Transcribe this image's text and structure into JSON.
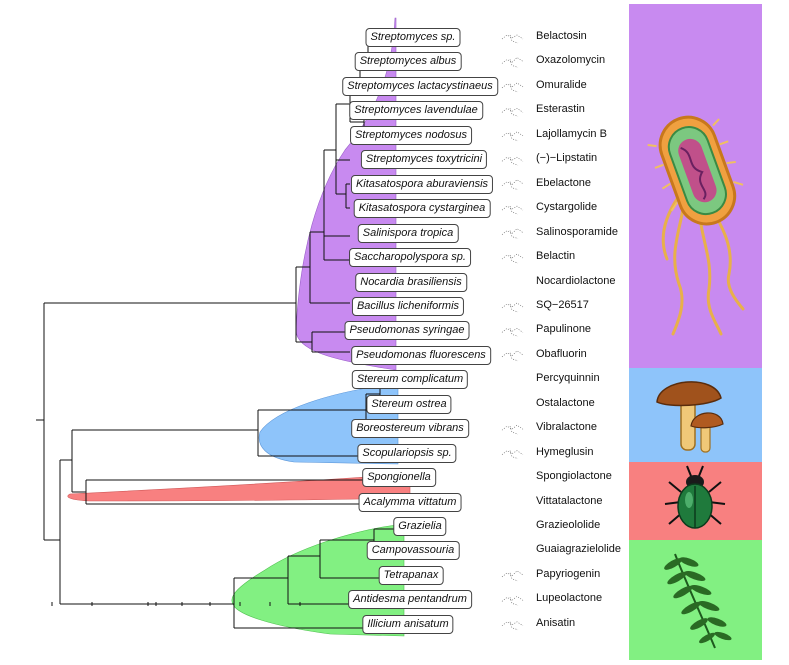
{
  "groups": [
    {
      "key": "bacteria",
      "color": "#c88af0",
      "icon": "bacterium-icon"
    },
    {
      "key": "fungi",
      "color": "#8ec4fa",
      "icon": "mushroom-icon"
    },
    {
      "key": "insects",
      "color": "#f88080",
      "icon": "beetle-icon"
    },
    {
      "key": "plants",
      "color": "#82f082",
      "icon": "fern-leaf-icon"
    }
  ],
  "taxa": [
    {
      "organism": "Streptomyces sp.",
      "compound": "Belactosin",
      "group": "bacteria"
    },
    {
      "organism": "Streptomyces albus",
      "compound": "Oxazolomycin",
      "group": "bacteria"
    },
    {
      "organism": "Streptomyces lactacystinaeus",
      "compound": "Omuralide",
      "group": "bacteria"
    },
    {
      "organism": "Streptomyces lavendulae",
      "compound": "Esterastin",
      "group": "bacteria"
    },
    {
      "organism": "Streptomyces nodosus",
      "compound": "Lajollamycin B",
      "group": "bacteria"
    },
    {
      "organism": "Streptomyces toxytricini",
      "compound": "(−)−Lipstatin",
      "group": "bacteria"
    },
    {
      "organism": "Kitasatospora aburaviensis",
      "compound": "Ebelactone",
      "group": "bacteria"
    },
    {
      "organism": "Kitasatospora cystarginea",
      "compound": "Cystargolide",
      "group": "bacteria"
    },
    {
      "organism": "Salinispora tropica",
      "compound": "Salinosporamide",
      "group": "bacteria"
    },
    {
      "organism": "Saccharopolyspora sp.",
      "compound": "Belactin",
      "group": "bacteria"
    },
    {
      "organism": "Nocardia brasiliensis",
      "compound": "Nocardiolactone",
      "group": "bacteria"
    },
    {
      "organism": "Bacillus licheniformis",
      "compound": "SQ−26517",
      "group": "bacteria"
    },
    {
      "organism": "Pseudomonas syringae",
      "compound": "Papulinone",
      "group": "bacteria"
    },
    {
      "organism": "Pseudomonas fluorescens",
      "compound": "Obafluorin",
      "group": "bacteria"
    },
    {
      "organism": "Stereum complicatum",
      "compound": "Percyquinnin",
      "group": "fungi"
    },
    {
      "organism": "Stereum ostrea",
      "compound": "Ostalactone",
      "group": "fungi"
    },
    {
      "organism": "Boreostereum vibrans",
      "compound": "Vibralactone",
      "group": "fungi"
    },
    {
      "organism": "Scopulariopsis sp.",
      "compound": "Hymeglusin",
      "group": "fungi"
    },
    {
      "organism": "Spongionella",
      "compound": "Spongiolactone",
      "group": "insects"
    },
    {
      "organism": "Acalymma vittatum",
      "compound": "Vittatalactone",
      "group": "insects"
    },
    {
      "organism": "Grazielia",
      "compound": "Grazieololide",
      "group": "plants"
    },
    {
      "organism": "Campovassouria",
      "compound": "Guaiagrazielolide",
      "group": "plants"
    },
    {
      "organism": "Tetrapanax",
      "compound": "Papyriogenin",
      "group": "plants"
    },
    {
      "organism": "Antidesma pentandrum",
      "compound": "Lupeolactone",
      "group": "plants"
    },
    {
      "organism": "Illicium anisatum",
      "compound": "Anisatin",
      "group": "plants"
    }
  ]
}
